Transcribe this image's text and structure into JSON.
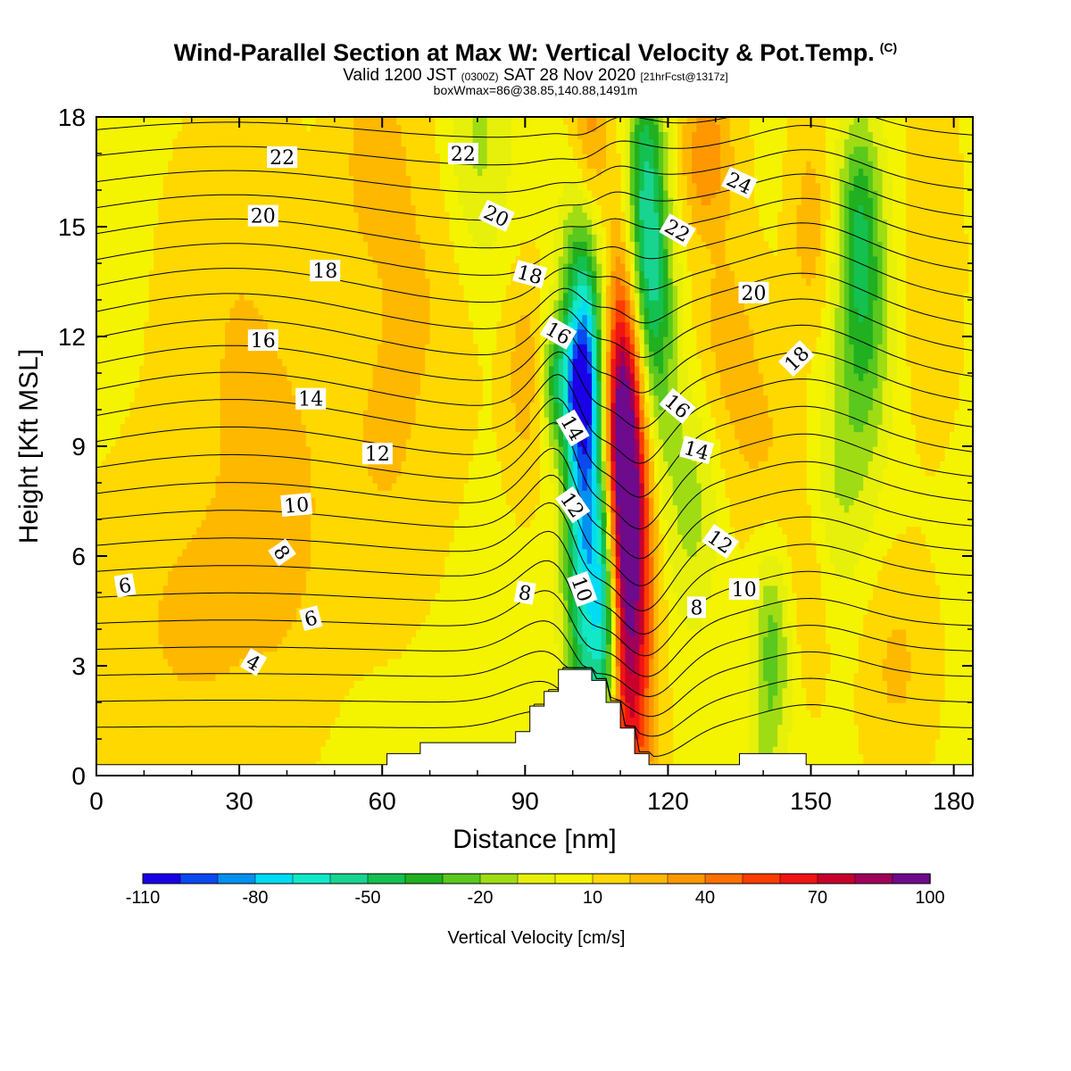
{
  "header": {
    "title": "Wind-Parallel Section at Max W: Vertical Velocity & Pot.Temp.",
    "copyright": "(C)",
    "subtitle_main": "Valid 1200 JST",
    "subtitle_utc": "(0300Z)",
    "subtitle_date": "SAT 28 Nov 2020",
    "subtitle_fcst": "[21hrFcst@1317z]",
    "box_info": "boxWmax=86@38.85,140.88,1491m"
  },
  "chart_data": {
    "type": "heatmap",
    "title": "Wind-Parallel Section at Max W: Vertical Velocity & Pot.Temp.",
    "xlabel": "Distance [nm]",
    "ylabel": "Height [Kft MSL]",
    "xlim": [
      0,
      184
    ],
    "ylim": [
      0,
      18
    ],
    "xticks": [
      0,
      30,
      60,
      90,
      120,
      150,
      180
    ],
    "yticks": [
      0,
      3,
      6,
      9,
      12,
      15,
      18
    ],
    "colorbar": {
      "label": "Vertical Velocity [cm/s]",
      "tick_labels": [
        -110,
        -80,
        -50,
        -20,
        10,
        40,
        70,
        100
      ],
      "levels": [
        -110,
        -100,
        -90,
        -80,
        -70,
        -60,
        -50,
        -40,
        -30,
        -20,
        -10,
        0,
        10,
        20,
        30,
        40,
        50,
        60,
        70,
        80,
        90,
        100
      ],
      "colors": [
        "#1a00e6",
        "#0a48f0",
        "#0090f0",
        "#00dcf4",
        "#10e8c8",
        "#18d490",
        "#14c050",
        "#20b020",
        "#5ac81c",
        "#a0dc14",
        "#e6f00a",
        "#f4f400",
        "#ffd800",
        "#ffb800",
        "#ff9800",
        "#ff7000",
        "#ff3c00",
        "#f01414",
        "#c8002c",
        "#a0005a",
        "#6e0a8c"
      ]
    },
    "background_color": "#f4f400",
    "w_features": [
      {
        "x": 103,
        "z": 8.5,
        "sx": 3.2,
        "sz": 5.5,
        "w": -95
      },
      {
        "x": 102,
        "z": 14,
        "sx": 3.0,
        "sz": 3.0,
        "w": -45
      },
      {
        "x": 101,
        "z": 10.5,
        "sx": 2.2,
        "sz": 1.2,
        "w": -40
      },
      {
        "x": 107,
        "z": 4.5,
        "sx": 2.0,
        "sz": 2.5,
        "w": -60
      },
      {
        "x": 112,
        "z": 6.0,
        "sx": 3.5,
        "sz": 5.5,
        "w": 85
      },
      {
        "x": 110,
        "z": 9.5,
        "sx": 3.0,
        "sz": 3.0,
        "w": 60
      },
      {
        "x": 103,
        "z": 16.5,
        "sx": 3.0,
        "sz": 3.0,
        "w": 70
      },
      {
        "x": 115,
        "z": 15,
        "sx": 3.0,
        "sz": 3.5,
        "w": -70
      },
      {
        "x": 118,
        "z": 12,
        "sx": 3.0,
        "sz": 3.0,
        "w": -30
      },
      {
        "x": 125,
        "z": 7.5,
        "sx": 4.0,
        "sz": 2.5,
        "w": -22
      },
      {
        "x": 161,
        "z": 12.5,
        "sx": 4.0,
        "sz": 3.0,
        "w": -40
      },
      {
        "x": 160,
        "z": 15.5,
        "sx": 3.0,
        "sz": 2.0,
        "w": -25
      },
      {
        "x": 155,
        "z": 7.0,
        "sx": 4.0,
        "sz": 2.5,
        "w": -18
      },
      {
        "x": 142,
        "z": 3.5,
        "sx": 3.0,
        "sz": 2.0,
        "w": -35
      },
      {
        "x": 140,
        "z": 1.0,
        "sx": 2.0,
        "sz": 0.8,
        "w": -10
      },
      {
        "x": 80,
        "z": 17,
        "sx": 5.0,
        "sz": 2.5,
        "w": -22
      },
      {
        "x": 96,
        "z": 10.8,
        "sx": 2.0,
        "sz": 1.2,
        "w": -35
      },
      {
        "x": 90,
        "z": 11,
        "sx": 3.0,
        "sz": 2.0,
        "w": 18
      },
      {
        "x": 128,
        "z": 17,
        "sx": 4.0,
        "sz": 1.5,
        "w": 30
      },
      {
        "x": 132,
        "z": 12,
        "sx": 5.0,
        "sz": 2.0,
        "w": 16
      },
      {
        "x": 150,
        "z": 15,
        "sx": 3.0,
        "sz": 2.0,
        "w": 18
      },
      {
        "x": 58,
        "z": 17,
        "sx": 5.0,
        "sz": 2.0,
        "w": 16
      },
      {
        "x": 40,
        "z": 7,
        "sx": 6.0,
        "sz": 3.0,
        "w": 10
      },
      {
        "x": 20,
        "z": 4,
        "sx": 15.0,
        "sz": 3.0,
        "w": 13
      },
      {
        "x": 60,
        "z": 9,
        "sx": 8.0,
        "sz": 3.0,
        "w": 12
      },
      {
        "x": 140,
        "z": 9,
        "sx": 6.0,
        "sz": 2.0,
        "w": 12
      },
      {
        "x": 175,
        "z": 14,
        "sx": 4.0,
        "sz": 3.0,
        "w": 12
      },
      {
        "x": 150,
        "z": 5,
        "sx": 5.0,
        "sz": 2.0,
        "w": 14
      },
      {
        "x": 168,
        "z": 3,
        "sx": 5.0,
        "sz": 2.0,
        "w": 14
      },
      {
        "x": 30,
        "z": 12,
        "sx": 10.0,
        "sz": 4.0,
        "w": 12
      },
      {
        "x": 70,
        "z": 14,
        "sx": 8.0,
        "sz": 3.0,
        "w": 11
      }
    ],
    "terrain": [
      [
        0,
        0.3
      ],
      [
        61,
        0.3
      ],
      [
        61,
        0.6
      ],
      [
        68,
        0.6
      ],
      [
        68,
        0.9
      ],
      [
        88,
        0.9
      ],
      [
        88,
        1.2
      ],
      [
        91,
        1.2
      ],
      [
        91,
        1.9
      ],
      [
        94,
        1.9
      ],
      [
        94,
        2.3
      ],
      [
        97,
        2.3
      ],
      [
        97,
        2.9
      ],
      [
        104,
        2.9
      ],
      [
        104,
        2.6
      ],
      [
        107,
        2.6
      ],
      [
        107,
        2.0
      ],
      [
        110,
        2.0
      ],
      [
        110,
        1.3
      ],
      [
        113,
        1.3
      ],
      [
        113,
        0.6
      ],
      [
        116,
        0.6
      ],
      [
        116,
        0.3
      ],
      [
        135,
        0.3
      ],
      [
        135,
        0.6
      ],
      [
        149,
        0.6
      ],
      [
        149,
        0.3
      ],
      [
        184,
        0.3
      ]
    ],
    "theta_contours": {
      "levels": [
        2,
        3,
        4,
        5,
        6,
        7,
        8,
        9,
        10,
        11,
        12,
        13,
        14,
        15,
        16,
        17,
        18,
        19,
        20,
        21,
        22,
        23,
        24,
        25,
        26
      ],
      "labels": [
        {
          "text": "4",
          "x": 33,
          "z": 3.1,
          "rot": 30
        },
        {
          "text": "6",
          "x": 6,
          "z": 5.2,
          "rot": -10
        },
        {
          "text": "6",
          "x": 45,
          "z": 4.3,
          "rot": -15
        },
        {
          "text": "8",
          "x": 39,
          "z": 6.1,
          "rot": 55
        },
        {
          "text": "8",
          "x": 90,
          "z": 5.0,
          "rot": 10
        },
        {
          "text": "8",
          "x": 126,
          "z": 4.6,
          "rot": 0
        },
        {
          "text": "10",
          "x": 42,
          "z": 7.4,
          "rot": -5
        },
        {
          "text": "10",
          "x": 102,
          "z": 5.1,
          "rot": 70
        },
        {
          "text": "10",
          "x": 136,
          "z": 5.1,
          "rot": 0
        },
        {
          "text": "12",
          "x": 59,
          "z": 8.8,
          "rot": 0
        },
        {
          "text": "12",
          "x": 100,
          "z": 7.4,
          "rot": 55
        },
        {
          "text": "12",
          "x": 131,
          "z": 6.4,
          "rot": 35
        },
        {
          "text": "14",
          "x": 45,
          "z": 10.3,
          "rot": 0
        },
        {
          "text": "14",
          "x": 100,
          "z": 9.5,
          "rot": 60
        },
        {
          "text": "14",
          "x": 126,
          "z": 8.9,
          "rot": 15
        },
        {
          "text": "16",
          "x": 35,
          "z": 11.9,
          "rot": 0
        },
        {
          "text": "16",
          "x": 97,
          "z": 12.1,
          "rot": 30
        },
        {
          "text": "16",
          "x": 122,
          "z": 10.1,
          "rot": 40
        },
        {
          "text": "18",
          "x": 48,
          "z": 13.8,
          "rot": 0
        },
        {
          "text": "18",
          "x": 91,
          "z": 13.7,
          "rot": 15
        },
        {
          "text": "18",
          "x": 147,
          "z": 11.4,
          "rot": -45
        },
        {
          "text": "20",
          "x": 35,
          "z": 15.3,
          "rot": 0
        },
        {
          "text": "20",
          "x": 84,
          "z": 15.3,
          "rot": 25
        },
        {
          "text": "20",
          "x": 138,
          "z": 13.2,
          "rot": 0
        },
        {
          "text": "22",
          "x": 39,
          "z": 16.9,
          "rot": 0
        },
        {
          "text": "22",
          "x": 77,
          "z": 17.0,
          "rot": 0
        },
        {
          "text": "22",
          "x": 122,
          "z": 14.9,
          "rot": 30
        },
        {
          "text": "24",
          "x": 135,
          "z": 16.2,
          "rot": 25
        }
      ]
    }
  }
}
